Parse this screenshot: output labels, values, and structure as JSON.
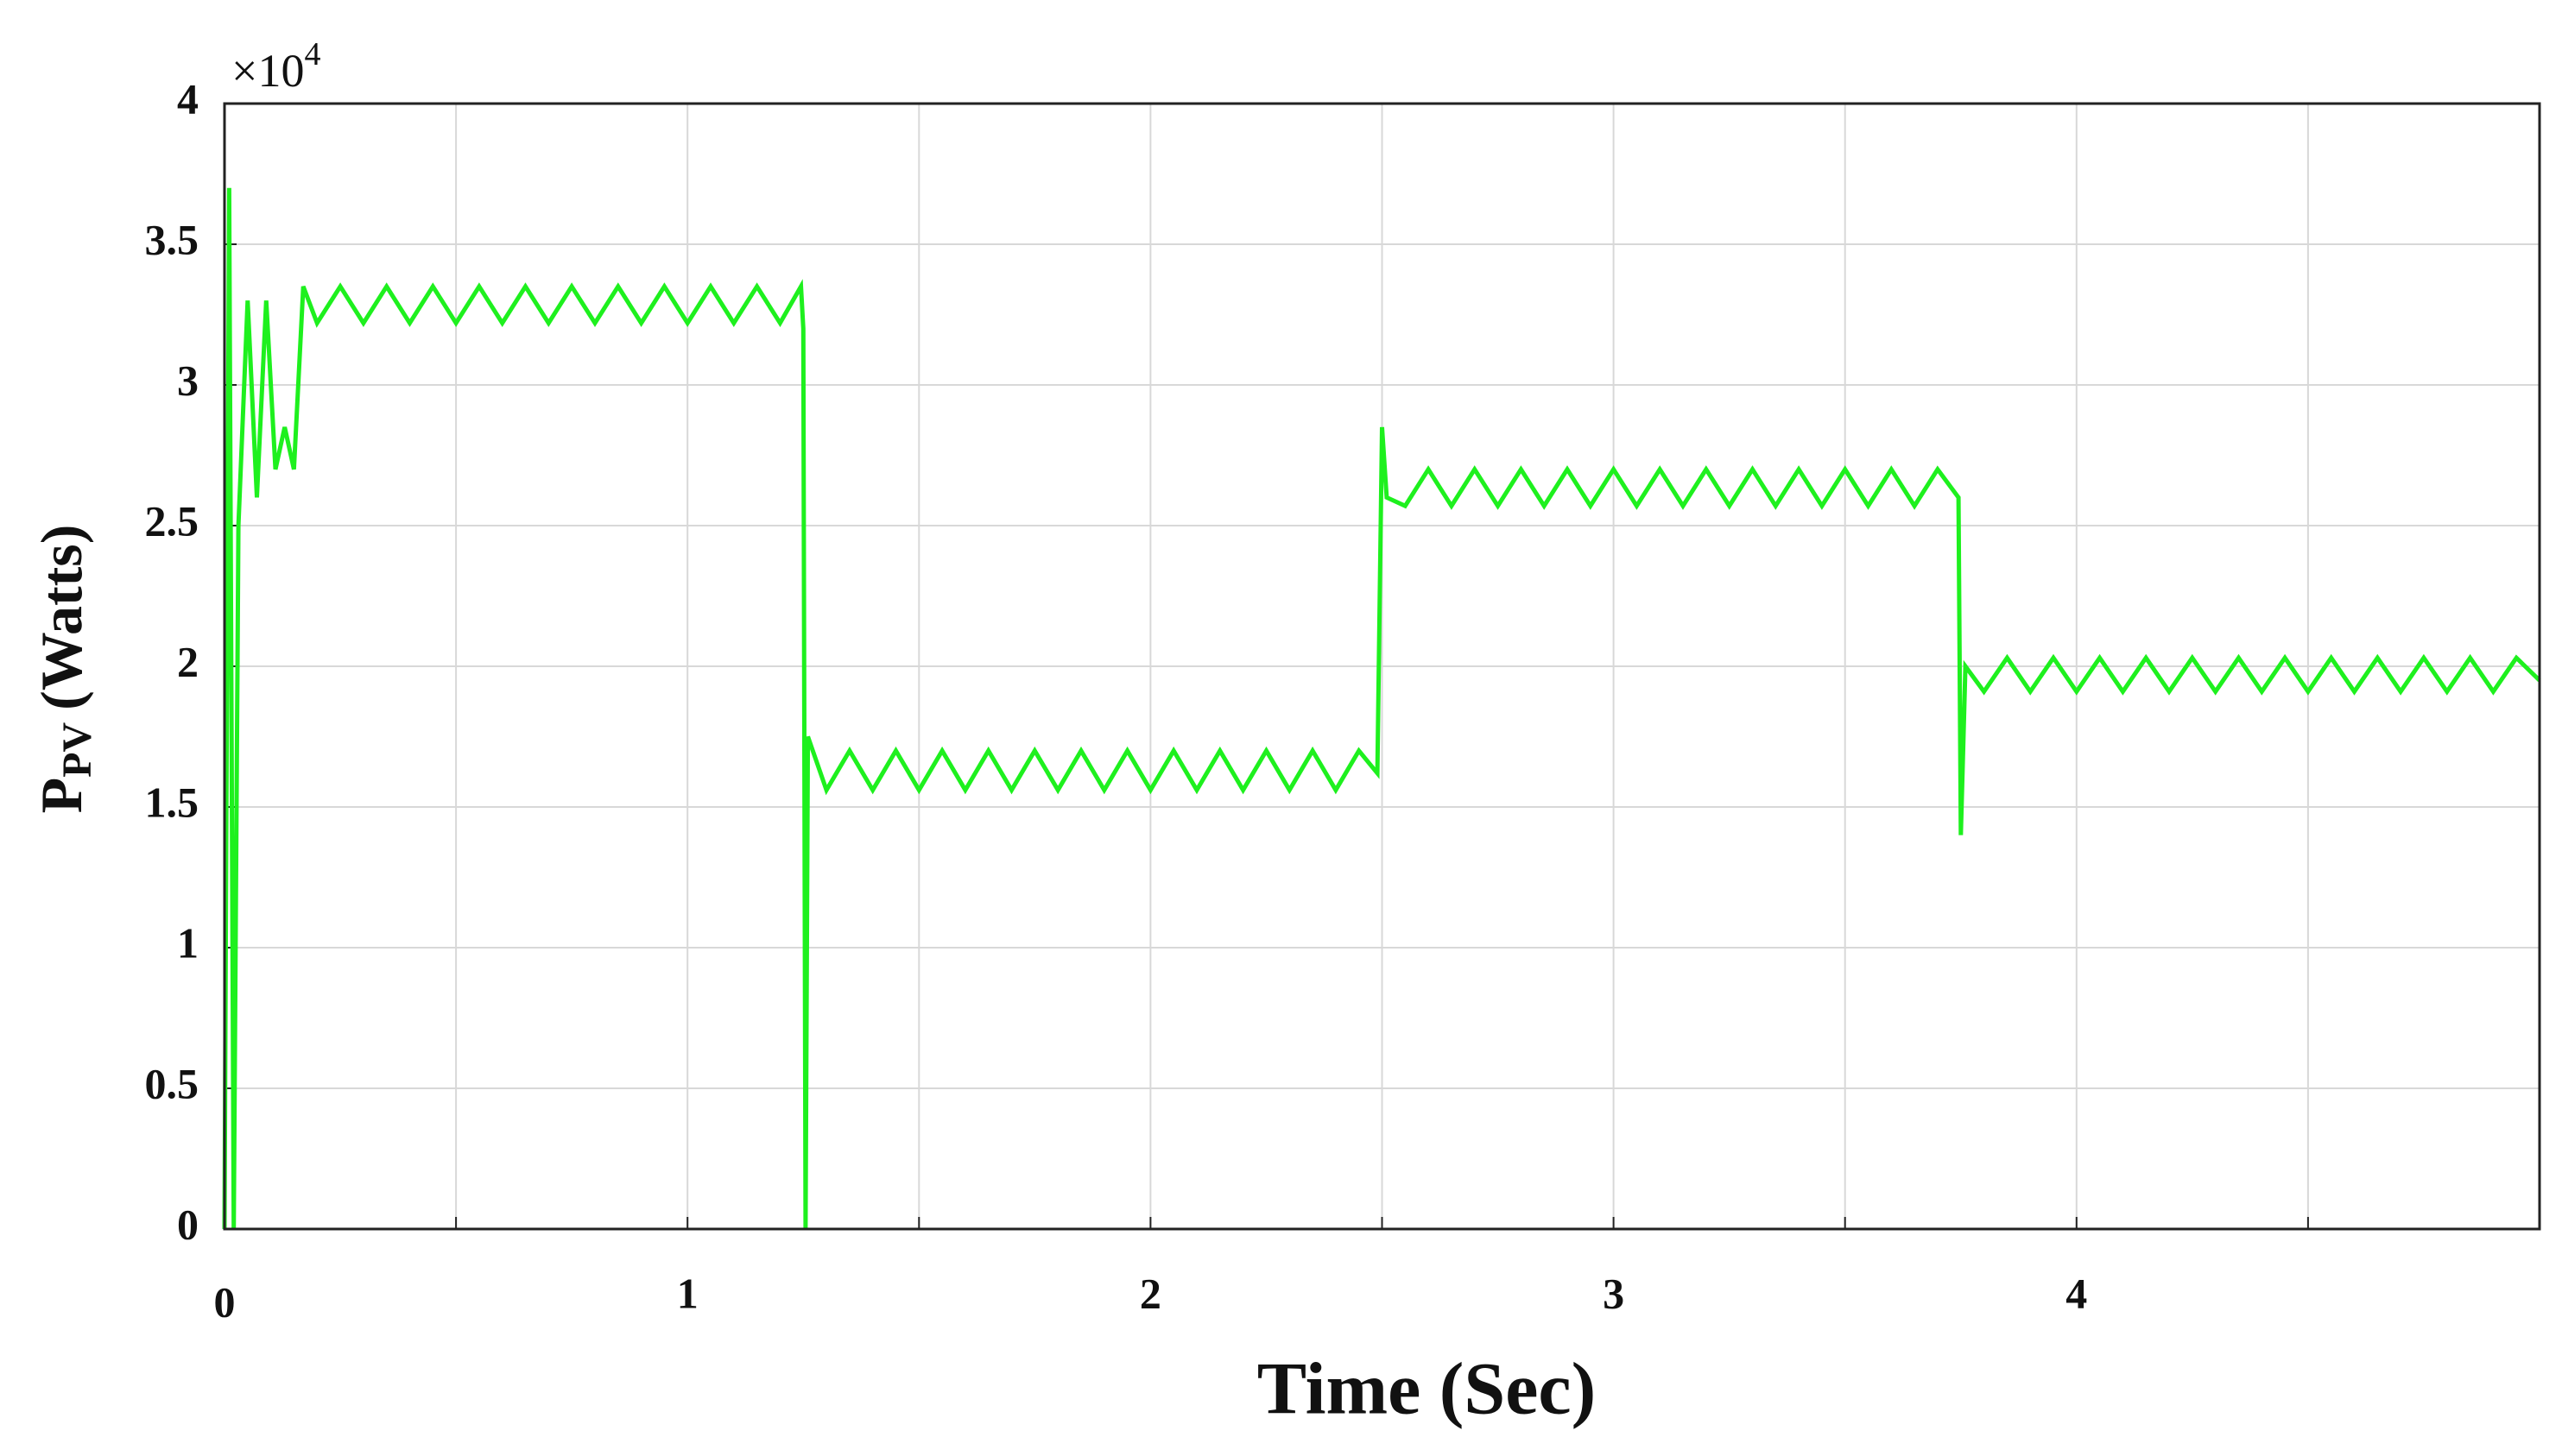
{
  "chart_data": {
    "type": "line",
    "ylabel": "P",
    "ylabel_sub": "PV",
    "ylabel_unit": "(Watts)",
    "xlabel": "Time (Sec)",
    "y_multiplier": "×10",
    "y_multiplier_exp": "4",
    "xlim": [
      0,
      5
    ],
    "xticks": [
      0,
      1,
      2,
      3,
      4
    ],
    "xgrid": [
      0.5,
      1.5,
      2.5,
      3.5,
      4.5
    ],
    "ylim": [
      0,
      4
    ],
    "yticks": [
      0,
      0.5,
      1,
      1.5,
      2,
      2.5,
      3,
      3.5,
      4
    ],
    "grid": true,
    "series": [
      {
        "color": "#1ef01e",
        "x": [
          0,
          0.01,
          0.02,
          0.03,
          0.05,
          0.07,
          0.09,
          0.11,
          0.13,
          0.15,
          0.17,
          0.2,
          0.25,
          0.3,
          0.35,
          0.4,
          0.45,
          0.5,
          0.55,
          0.6,
          0.65,
          0.7,
          0.75,
          0.8,
          0.85,
          0.9,
          0.95,
          1,
          1.05,
          1.1,
          1.15,
          1.2,
          1.245,
          1.25,
          1.255,
          1.26,
          1.3,
          1.35,
          1.4,
          1.45,
          1.5,
          1.55,
          1.6,
          1.65,
          1.7,
          1.75,
          1.8,
          1.85,
          1.9,
          1.95,
          2,
          2.05,
          2.1,
          2.15,
          2.2,
          2.25,
          2.3,
          2.35,
          2.4,
          2.45,
          2.49,
          2.5,
          2.51,
          2.55,
          2.6,
          2.65,
          2.7,
          2.75,
          2.8,
          2.85,
          2.9,
          2.95,
          3,
          3.05,
          3.1,
          3.15,
          3.2,
          3.25,
          3.3,
          3.35,
          3.4,
          3.45,
          3.5,
          3.55,
          3.6,
          3.65,
          3.7,
          3.745,
          3.75,
          3.76,
          3.8,
          3.85,
          3.9,
          3.95,
          4,
          4.05,
          4.1,
          4.15,
          4.2,
          4.25,
          4.3,
          4.35,
          4.4,
          4.45,
          4.5,
          4.55,
          4.6,
          4.65,
          4.7,
          4.75,
          4.8,
          4.85,
          4.9,
          4.95,
          5
        ],
        "values": [
          0,
          3.7,
          0,
          2.5,
          3.3,
          2.6,
          3.3,
          2.7,
          2.85,
          2.7,
          3.35,
          3.22,
          3.35,
          3.22,
          3.35,
          3.22,
          3.35,
          3.22,
          3.35,
          3.22,
          3.35,
          3.22,
          3.35,
          3.22,
          3.35,
          3.22,
          3.35,
          3.22,
          3.35,
          3.22,
          3.35,
          3.22,
          3.35,
          3.2,
          0,
          1.75,
          1.56,
          1.7,
          1.56,
          1.7,
          1.56,
          1.7,
          1.56,
          1.7,
          1.56,
          1.7,
          1.56,
          1.7,
          1.56,
          1.7,
          1.56,
          1.7,
          1.56,
          1.7,
          1.56,
          1.7,
          1.56,
          1.7,
          1.56,
          1.7,
          1.62,
          2.85,
          2.6,
          2.57,
          2.7,
          2.57,
          2.7,
          2.57,
          2.7,
          2.57,
          2.7,
          2.57,
          2.7,
          2.57,
          2.7,
          2.57,
          2.7,
          2.57,
          2.7,
          2.57,
          2.7,
          2.57,
          2.7,
          2.57,
          2.7,
          2.57,
          2.7,
          2.6,
          1.4,
          2.0,
          1.91,
          2.03,
          1.91,
          2.03,
          1.91,
          2.03,
          1.91,
          2.03,
          1.91,
          2.03,
          1.91,
          2.03,
          1.91,
          2.03,
          1.91,
          2.03,
          1.91,
          2.03,
          1.91,
          2.03,
          1.91,
          2.03,
          1.91,
          2.03,
          1.95
        ]
      }
    ]
  }
}
